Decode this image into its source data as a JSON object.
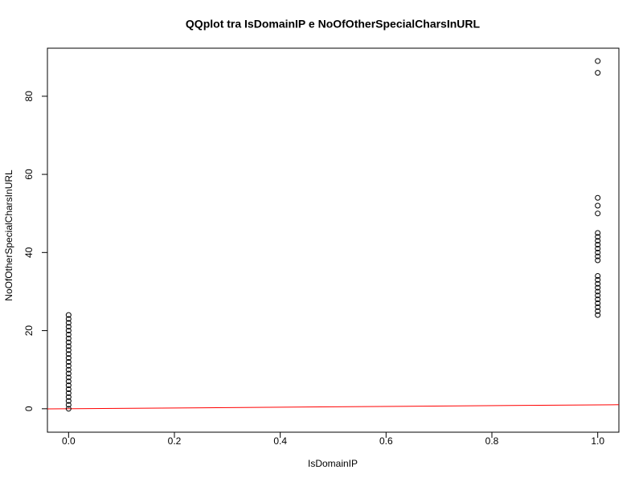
{
  "chart_data": {
    "type": "scatter",
    "title": "QQplot tra IsDomainIP e NoOfOtherSpecialCharsInURL",
    "xlabel": "IsDomainIP",
    "ylabel": "NoOfOtherSpecialCharsInURL",
    "xlim": [
      -0.04,
      1.04
    ],
    "ylim": [
      -6,
      92.3
    ],
    "xticks": [
      {
        "value": 0,
        "label": "0.0"
      },
      {
        "value": 0.2,
        "label": "0.2"
      },
      {
        "value": 0.4,
        "label": "0.4"
      },
      {
        "value": 0.6,
        "label": "0.6"
      },
      {
        "value": 0.8,
        "label": "0.8"
      },
      {
        "value": 1,
        "label": "1.0"
      }
    ],
    "yticks": [
      0,
      20,
      40,
      60,
      80
    ],
    "series": [
      {
        "color": "#000000",
        "x": [
          0,
          0,
          0,
          0,
          0,
          0,
          0,
          0,
          0,
          0,
          0,
          0,
          0,
          0,
          0,
          0,
          0,
          0,
          0,
          0,
          0,
          0,
          0,
          0,
          0,
          1,
          1,
          1,
          1,
          1,
          1,
          1,
          1,
          1,
          1,
          1,
          1,
          1,
          1,
          1,
          1,
          1,
          1,
          1,
          1,
          1,
          1,
          1,
          1
        ],
        "values": [
          0,
          1,
          2,
          3,
          4,
          5,
          6,
          7,
          8,
          9,
          10,
          11,
          12,
          13,
          14,
          15,
          16,
          17,
          18,
          19,
          20,
          21,
          22,
          23,
          24,
          24,
          25,
          26,
          27,
          28,
          29,
          30,
          31,
          32,
          33,
          34,
          38,
          39,
          40,
          41,
          42,
          43,
          44,
          45,
          50,
          52,
          54,
          86,
          89
        ]
      }
    ],
    "reference_line": {
      "intercept": 0,
      "slope": 1,
      "color": "#ff0000"
    }
  }
}
